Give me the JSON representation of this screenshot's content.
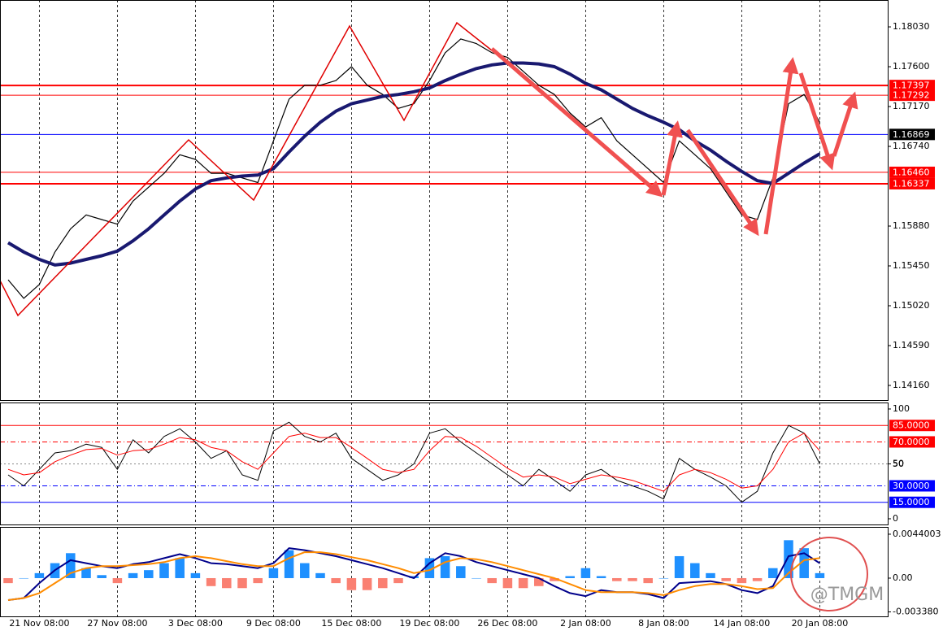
{
  "chart_data": [
    {
      "type": "line",
      "categories": [
        null,
        null,
        "21 Nov 08:00",
        null,
        null,
        null,
        null,
        "27 Nov 08:00",
        null,
        null,
        null,
        null,
        "3 Dec 08:00",
        null,
        null,
        null,
        null,
        "9 Dec 08:00",
        null,
        null,
        null,
        null,
        "15 Dec 08:00",
        null,
        null,
        null,
        null,
        "19 Dec 08:00",
        null,
        null,
        null,
        null,
        "26 Dec 08:00",
        null,
        null,
        null,
        null,
        "2 Jan 08:00",
        null,
        null,
        null,
        null,
        "8 Jan 08:00",
        null,
        null,
        null,
        null,
        "14 Jan 08:00",
        null,
        null,
        null,
        null,
        "20 Jan 08:00"
      ],
      "series": [
        {
          "color": "#000000",
          "width": 1.2,
          "values": [
            1.153,
            1.151,
            1.1525,
            1.156,
            1.1585,
            1.16,
            1.1595,
            1.159,
            1.1615,
            1.163,
            1.1645,
            1.1665,
            1.166,
            1.1645,
            1.1645,
            1.164,
            1.1635,
            1.168,
            1.1725,
            1.174,
            1.174,
            1.1745,
            1.176,
            1.174,
            1.173,
            1.1715,
            1.172,
            1.1745,
            1.1775,
            1.179,
            1.1785,
            1.1775,
            1.177,
            1.1755,
            1.174,
            1.173,
            1.171,
            1.1695,
            1.1705,
            1.168,
            1.1665,
            1.165,
            1.1635,
            1.168,
            1.1665,
            1.165,
            1.1625,
            1.16,
            1.1595,
            1.164,
            1.172,
            1.173,
            1.17
          ]
        },
        {
          "color": "#191970",
          "width": 4,
          "values": [
            1.157,
            1.156,
            1.1552,
            1.1546,
            1.1548,
            1.1552,
            1.1556,
            1.1561,
            1.1572,
            1.1585,
            1.16,
            1.1615,
            1.1628,
            1.1637,
            1.164,
            1.1642,
            1.1643,
            1.165,
            1.1668,
            1.1685,
            1.17,
            1.1712,
            1.172,
            1.1724,
            1.1728,
            1.173,
            1.1733,
            1.1737,
            1.1745,
            1.1752,
            1.1758,
            1.1762,
            1.1764,
            1.1764,
            1.1763,
            1.176,
            1.1752,
            1.1742,
            1.1735,
            1.1725,
            1.1715,
            1.1707,
            1.17,
            1.1692,
            1.168,
            1.167,
            1.1658,
            1.1647,
            1.1637,
            1.1634,
            1.1645,
            1.1656,
            1.1666
          ]
        }
      ],
      "ylim": [
        1.14002,
        1.1832
      ],
      "yticks": [
        {
          "value": 1.1803,
          "label": "1.18030"
        },
        {
          "value": 1.176,
          "label": "1.17600"
        },
        {
          "value": 1.1717,
          "label": "1.17170"
        },
        {
          "value": 1.1674,
          "label": "1.16740"
        },
        {
          "value": 1.1588,
          "label": "1.15880"
        },
        {
          "value": 1.1545,
          "label": "1.15450"
        },
        {
          "value": 1.1502,
          "label": "1.15020"
        },
        {
          "value": 1.1459,
          "label": "1.14590"
        },
        {
          "value": 1.1416,
          "label": "1.14160"
        }
      ],
      "levels": [
        {
          "value": 1.17397,
          "color": "#ff0000",
          "box": "#ff0000",
          "width": 2
        },
        {
          "value": 1.17292,
          "color": "#ff0000",
          "box": "#ff0000",
          "width": 1
        },
        {
          "value": 1.16869,
          "color": "#0000ff",
          "box": "#000000",
          "width": 1
        },
        {
          "value": 1.1646,
          "label": "1.16460",
          "color": "#ff0000",
          "box": "#ff0000",
          "width": 1
        },
        {
          "value": 1.16337,
          "color": "#ff0000",
          "box": "#ff0000",
          "width": 2
        }
      ],
      "grid": true
    },
    {
      "type": "line",
      "series": [
        {
          "color": "#000000",
          "width": 1,
          "values": [
            40,
            30,
            45,
            60,
            62,
            68,
            65,
            45,
            72,
            60,
            75,
            82,
            70,
            55,
            62,
            40,
            35,
            80,
            88,
            75,
            70,
            78,
            55,
            45,
            35,
            40,
            50,
            78,
            82,
            70,
            60,
            50,
            40,
            30,
            45,
            35,
            25,
            40,
            45,
            35,
            30,
            25,
            18,
            55,
            45,
            38,
            30,
            15,
            25,
            60,
            85,
            78,
            50
          ]
        },
        {
          "color": "#ff0000",
          "width": 1,
          "values": [
            45,
            40,
            42,
            52,
            58,
            63,
            64,
            58,
            62,
            63,
            68,
            74,
            72,
            65,
            62,
            52,
            45,
            60,
            75,
            78,
            74,
            74,
            65,
            55,
            45,
            42,
            45,
            62,
            75,
            74,
            66,
            56,
            46,
            38,
            40,
            38,
            32,
            36,
            40,
            38,
            35,
            30,
            25,
            40,
            45,
            42,
            36,
            28,
            30,
            45,
            70,
            78,
            62
          ]
        }
      ],
      "ylim": [
        -5.2,
        105.9
      ],
      "yticks": [
        100,
        50,
        0
      ],
      "levels": [
        {
          "value": 85,
          "label": "85.0000",
          "color": "#ff0000",
          "box": "#ff0000",
          "dash": "none"
        },
        {
          "value": 70,
          "label": "70.0000",
          "color": "#ff0000",
          "box": "#ff0000",
          "dash": "6 3 1 3"
        },
        {
          "value": 50,
          "color": "#888888",
          "dash": "2 3"
        },
        {
          "value": 30,
          "label": "30.0000",
          "color": "#0000ff",
          "box": "#0000ff",
          "dash": "6 3 1 3"
        },
        {
          "value": 15,
          "label": "15.0000",
          "color": "#0000ff",
          "box": "#0000ff",
          "dash": "none"
        }
      ],
      "grid": true
    },
    {
      "type": "bar",
      "values": [
        -0.0005,
        0,
        0.0005,
        0.0015,
        0.0025,
        0.001,
        0.0003,
        -0.0005,
        0.0005,
        0.0008,
        0.0015,
        0.002,
        0.0005,
        -0.0008,
        -0.001,
        -0.001,
        -0.0005,
        0.001,
        0.0028,
        0.0015,
        0.0005,
        -0.0005,
        -0.0012,
        -0.0012,
        -0.001,
        -0.0005,
        0.0002,
        0.002,
        0.0022,
        0.0012,
        0,
        -0.0005,
        -0.001,
        -0.001,
        -0.0008,
        -0.0003,
        0.0002,
        0.001,
        0.0002,
        -0.0003,
        -0.0003,
        -0.0005,
        0,
        0.0022,
        0.0015,
        0.0005,
        -0.0003,
        -0.0005,
        -0.0003,
        0.001,
        0.0038,
        0.003,
        0.0005
      ],
      "color": "#1e90ff",
      "negative_color": "#fa8072",
      "series": [
        {
          "color": "#00008b",
          "width": 2,
          "values": [
            -0.0022,
            -0.002,
            -0.0005,
            0.0008,
            0.0018,
            0.0015,
            0.0012,
            0.001,
            0.0014,
            0.0016,
            0.002,
            0.0024,
            0.002,
            0.0015,
            0.0014,
            0.0012,
            0.001,
            0.0015,
            0.003,
            0.0028,
            0.0025,
            0.0022,
            0.0018,
            0.0014,
            0.001,
            0.0005,
            0,
            0.0015,
            0.0025,
            0.0022,
            0.0016,
            0.0012,
            0.0008,
            0.0004,
            0,
            -0.0008,
            -0.0015,
            -0.0018,
            -0.0012,
            -0.0014,
            -0.0014,
            -0.0016,
            -0.002,
            -0.0005,
            -0.0004,
            -0.0003,
            -0.0006,
            -0.0012,
            -0.0015,
            -0.0008,
            0.0022,
            0.0025,
            0.0015
          ]
        },
        {
          "color": "#ff8c00",
          "width": 2,
          "values": [
            -0.0022,
            -0.002,
            -0.0015,
            -0.0005,
            0.0005,
            0.001,
            0.0012,
            0.0012,
            0.0013,
            0.0014,
            0.0016,
            0.002,
            0.0022,
            0.002,
            0.0017,
            0.0014,
            0.0012,
            0.0012,
            0.002,
            0.0026,
            0.0026,
            0.0024,
            0.0021,
            0.0018,
            0.0014,
            0.001,
            0.0005,
            0.0008,
            0.0016,
            0.002,
            0.0019,
            0.0016,
            0.0012,
            0.0008,
            0.0004,
            0,
            -0.0006,
            -0.0012,
            -0.0014,
            -0.0014,
            -0.0014,
            -0.0015,
            -0.0017,
            -0.0012,
            -0.0008,
            -0.0006,
            -0.0006,
            -0.0008,
            -0.0011,
            -0.001,
            0.0005,
            0.0018,
            0.002
          ]
        }
      ],
      "ylim": [
        -0.00383,
        0.00513
      ],
      "yticks": [
        0.0044003,
        {
          "value": 0,
          "label": "0.00"
        },
        {
          "value": -0.00338,
          "label": "-0.003380"
        }
      ],
      "grid": true
    }
  ],
  "watermark": "@TMGM"
}
